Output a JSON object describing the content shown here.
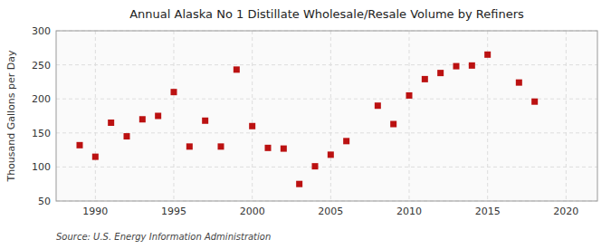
{
  "chart_data": {
    "type": "scatter",
    "title": "Annual Alaska No 1 Distillate Wholesale/Resale Volume by Refiners",
    "ylabel": "Thousand Gallons per Day",
    "annotation": "Source: U.S. Energy Information Administration",
    "x": [
      1989,
      1990,
      1991,
      1992,
      1993,
      1994,
      1995,
      1996,
      1997,
      1998,
      1999,
      2000,
      2001,
      2002,
      2003,
      2004,
      2005,
      2006,
      2008,
      2009,
      2010,
      2011,
      2012,
      2013,
      2014,
      2015,
      2017,
      2018
    ],
    "values": [
      132,
      115,
      165,
      145,
      170,
      175,
      210,
      130,
      168,
      130,
      243,
      160,
      128,
      127,
      75,
      101,
      118,
      138,
      190,
      163,
      205,
      229,
      238,
      248,
      249,
      265,
      224,
      196
    ],
    "xlim": [
      1987.5,
      2022
    ],
    "ylim": [
      50,
      300
    ],
    "xticks": [
      1990,
      1995,
      2000,
      2005,
      2010,
      2015,
      2020
    ],
    "yticks": [
      50,
      100,
      150,
      200,
      250,
      300
    ],
    "color": "#bb1111",
    "marker": "square",
    "grid": true
  }
}
